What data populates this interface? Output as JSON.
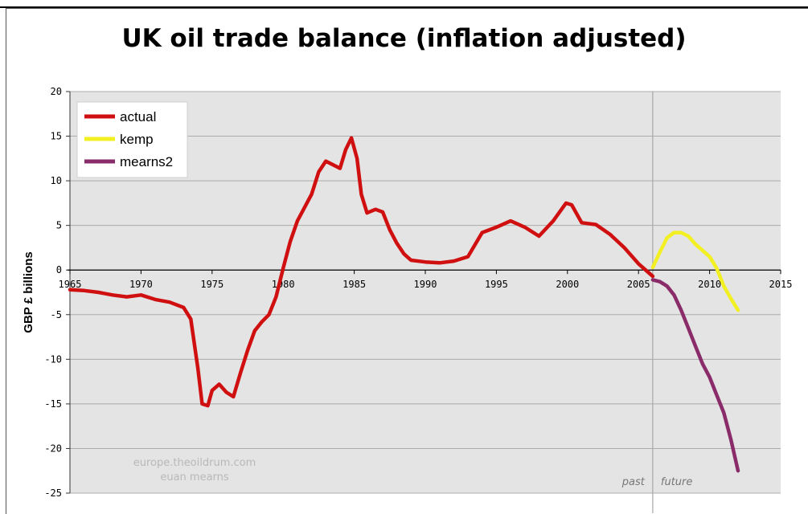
{
  "chart_data": {
    "type": "line",
    "title": "UK oil trade balance (inflation adjusted)",
    "ylabel": "GBP £ billions",
    "xlabel": "",
    "xlim": [
      1965,
      2015
    ],
    "ylim": [
      -25,
      20
    ],
    "x_ticks": [
      "1965",
      "1970",
      "1975",
      "1980",
      "1985",
      "1990",
      "1995",
      "2000",
      "2005",
      "2010",
      "2015"
    ],
    "y_ticks": [
      "20",
      "15",
      "10",
      "5",
      "0",
      "-5",
      "-10",
      "-15",
      "-20",
      "-25"
    ],
    "grid": true,
    "legend_position": "top-left",
    "divider_year": 2006,
    "annotations": {
      "past": "past",
      "future": "future",
      "source1": "europe.theoildrum.com",
      "source2": "euan mearns"
    },
    "series": [
      {
        "name": "actual",
        "color": "#d01010",
        "points": [
          [
            1965,
            -2.2
          ],
          [
            1966,
            -2.3
          ],
          [
            1967,
            -2.5
          ],
          [
            1968,
            -2.8
          ],
          [
            1969,
            -3.0
          ],
          [
            1970,
            -2.8
          ],
          [
            1971,
            -3.3
          ],
          [
            1972,
            -3.6
          ],
          [
            1973,
            -4.2
          ],
          [
            1973.5,
            -5.5
          ],
          [
            1974,
            -11
          ],
          [
            1974.3,
            -15.0
          ],
          [
            1974.7,
            -15.2
          ],
          [
            1975,
            -13.5
          ],
          [
            1975.5,
            -12.8
          ],
          [
            1976,
            -13.7
          ],
          [
            1976.5,
            -14.2
          ],
          [
            1977,
            -11.5
          ],
          [
            1977.5,
            -9.0
          ],
          [
            1978,
            -6.8
          ],
          [
            1978.5,
            -5.8
          ],
          [
            1979,
            -5.0
          ],
          [
            1979.5,
            -3.0
          ],
          [
            1980,
            0.2
          ],
          [
            1980.5,
            3.2
          ],
          [
            1981,
            5.5
          ],
          [
            1982,
            8.5
          ],
          [
            1982.5,
            11.0
          ],
          [
            1983,
            12.2
          ],
          [
            1983.5,
            11.8
          ],
          [
            1984,
            11.4
          ],
          [
            1984.4,
            13.5
          ],
          [
            1984.8,
            14.8
          ],
          [
            1985.2,
            12.5
          ],
          [
            1985.5,
            8.5
          ],
          [
            1985.9,
            6.4
          ],
          [
            1986.5,
            6.8
          ],
          [
            1987,
            6.5
          ],
          [
            1987.5,
            4.5
          ],
          [
            1988,
            3.0
          ],
          [
            1988.5,
            1.8
          ],
          [
            1989,
            1.1
          ],
          [
            1990,
            0.9
          ],
          [
            1991,
            0.8
          ],
          [
            1992,
            1.0
          ],
          [
            1993,
            1.5
          ],
          [
            1994,
            4.2
          ],
          [
            1995,
            4.8
          ],
          [
            1996,
            5.5
          ],
          [
            1997,
            4.8
          ],
          [
            1998,
            3.8
          ],
          [
            1999,
            5.5
          ],
          [
            1999.9,
            7.5
          ],
          [
            2000.3,
            7.3
          ],
          [
            2001,
            5.3
          ],
          [
            2002,
            5.1
          ],
          [
            2003,
            4.0
          ],
          [
            2004,
            2.5
          ],
          [
            2005,
            0.7
          ],
          [
            2006,
            -0.7
          ]
        ]
      },
      {
        "name": "kemp",
        "color": "#f2f022",
        "points": [
          [
            2006,
            0.3
          ],
          [
            2006.5,
            2.0
          ],
          [
            2007,
            3.6
          ],
          [
            2007.5,
            4.2
          ],
          [
            2008,
            4.2
          ],
          [
            2008.5,
            3.8
          ],
          [
            2009,
            2.9
          ],
          [
            2009.5,
            2.2
          ],
          [
            2010,
            1.5
          ],
          [
            2010.5,
            0.2
          ],
          [
            2011,
            -1.8
          ],
          [
            2011.5,
            -3.2
          ],
          [
            2012,
            -4.5
          ]
        ]
      },
      {
        "name": "mearns2",
        "color": "#8a2c6a",
        "points": [
          [
            2006,
            -1.1
          ],
          [
            2006.5,
            -1.3
          ],
          [
            2007,
            -1.8
          ],
          [
            2007.5,
            -2.8
          ],
          [
            2008,
            -4.5
          ],
          [
            2008.5,
            -6.5
          ],
          [
            2009,
            -8.5
          ],
          [
            2009.5,
            -10.5
          ],
          [
            2010,
            -12.0
          ],
          [
            2010.5,
            -14.0
          ],
          [
            2011,
            -16.0
          ],
          [
            2011.5,
            -19.0
          ],
          [
            2012,
            -22.5
          ]
        ]
      }
    ]
  }
}
